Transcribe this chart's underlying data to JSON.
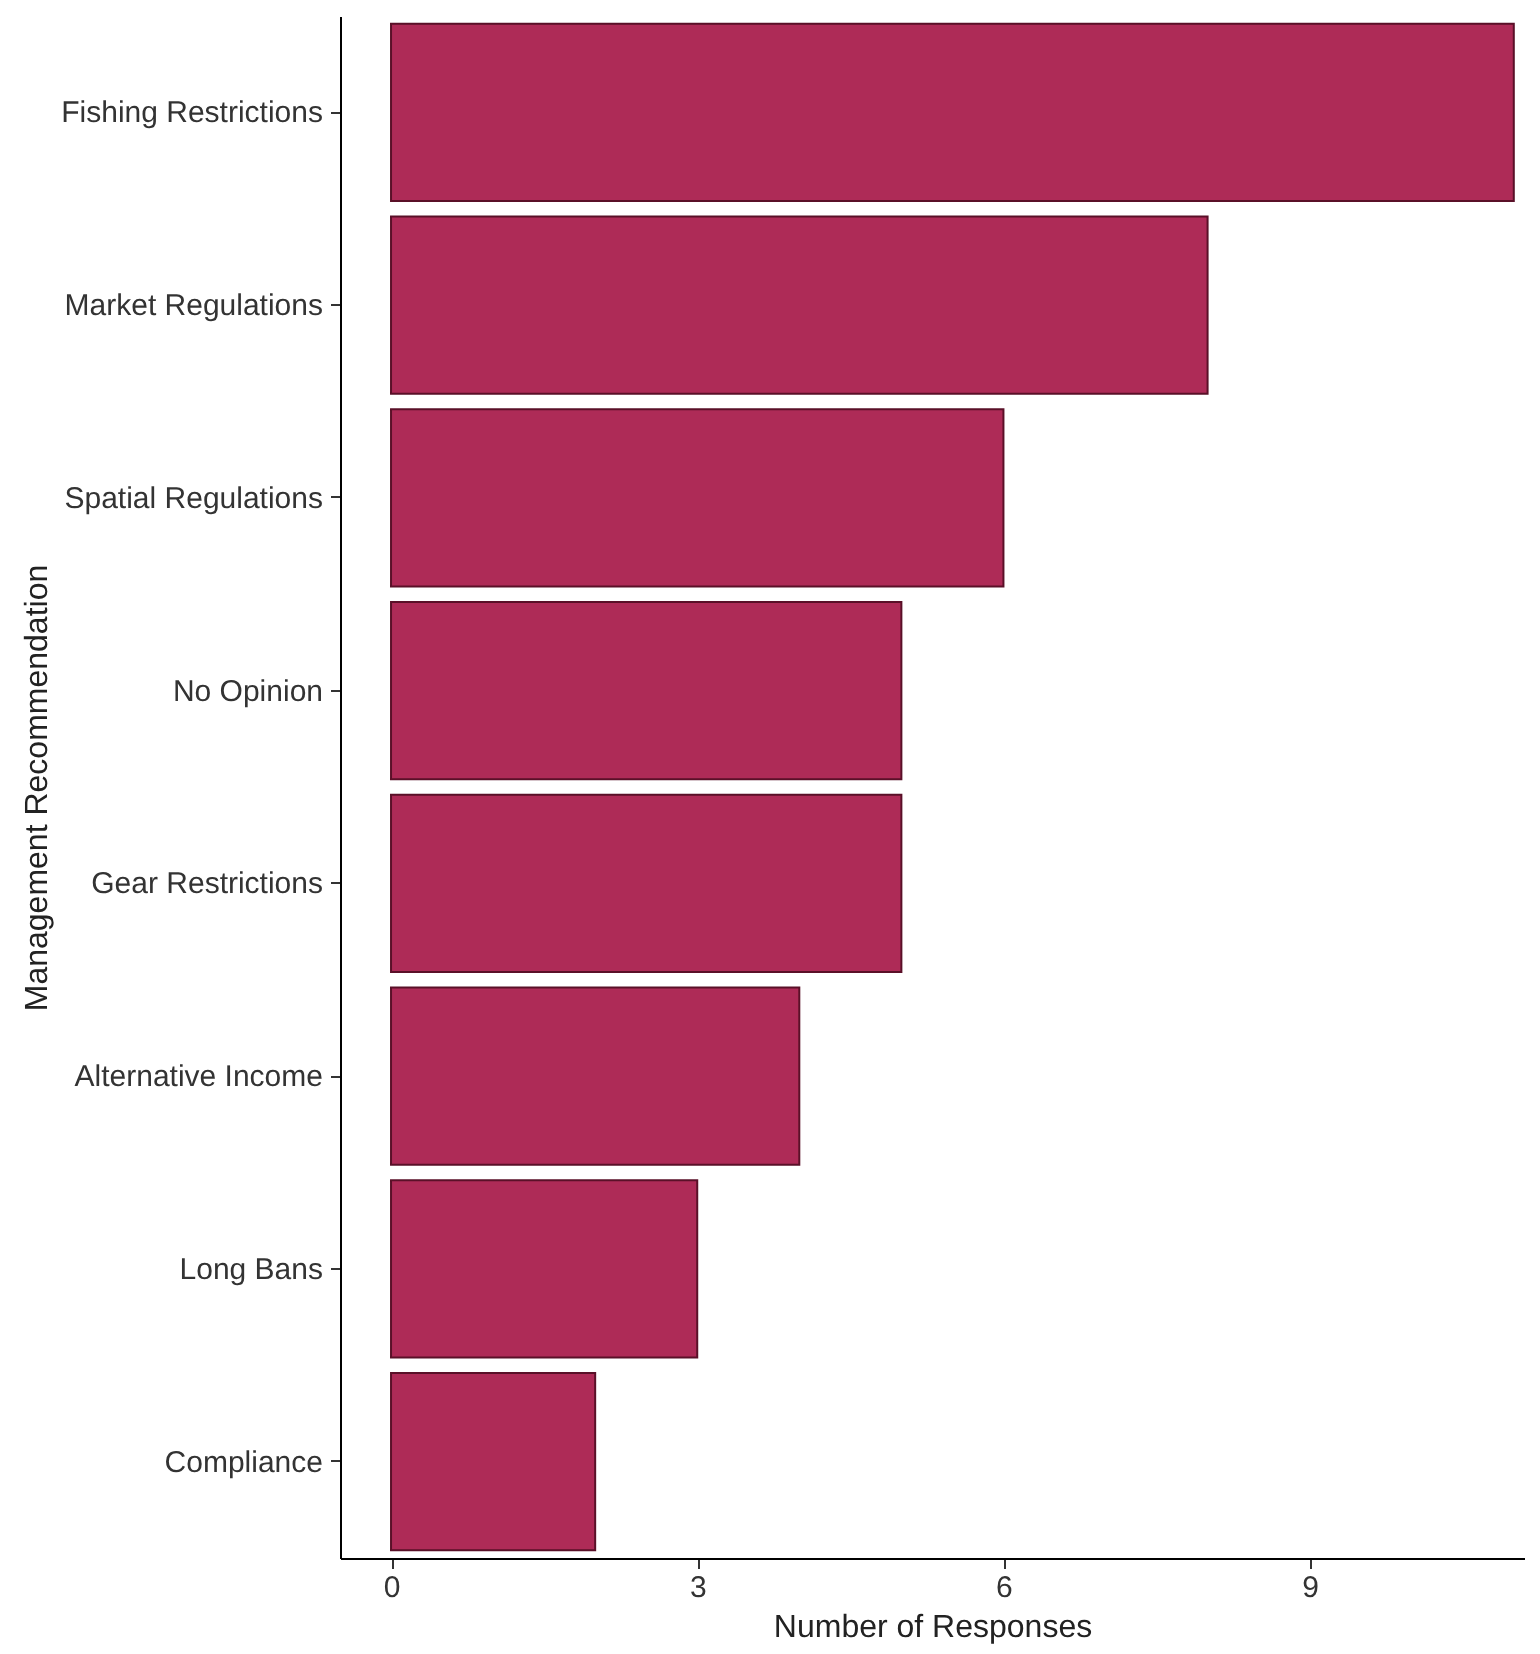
{
  "chart_data": {
    "type": "bar",
    "orientation": "horizontal",
    "xlabel": "Number of Responses",
    "ylabel": "Management Recommendation",
    "categories": [
      "Fishing Restrictions",
      "Market Regulations",
      "Spatial Regulations",
      "No Opinion",
      "Gear Restrictions",
      "Alternative Income",
      "Long Bans",
      "Compliance"
    ],
    "values": [
      11,
      8,
      6,
      5,
      5,
      4,
      3,
      2
    ],
    "color": "#ae2b57",
    "xlim": [
      -0.5,
      11.1
    ],
    "xticks": [
      0,
      3,
      6,
      9
    ],
    "grid": false
  }
}
